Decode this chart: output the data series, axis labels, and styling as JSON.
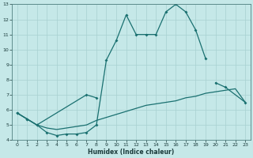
{
  "xlabel": "Humidex (Indice chaleur)",
  "background_color": "#c5e8e8",
  "grid_color": "#a8d0d0",
  "line_color": "#1a7070",
  "xlim": [
    -0.5,
    23.5
  ],
  "ylim": [
    4,
    13
  ],
  "x_ticks": [
    0,
    1,
    2,
    3,
    4,
    5,
    6,
    7,
    8,
    9,
    10,
    11,
    12,
    13,
    14,
    15,
    16,
    17,
    18,
    19,
    20,
    21,
    22,
    23
  ],
  "y_ticks": [
    4,
    5,
    6,
    7,
    8,
    9,
    10,
    11,
    12,
    13
  ],
  "curve_upper_x": [
    0,
    1,
    2,
    3,
    4,
    5,
    6,
    7,
    8,
    9,
    10,
    11,
    12,
    13,
    14,
    15,
    16,
    17,
    18,
    19
  ],
  "curve_upper_y": [
    5.8,
    5.4,
    5.0,
    4.5,
    4.3,
    4.4,
    4.4,
    4.5,
    5.0,
    9.3,
    10.6,
    12.3,
    11.0,
    11.0,
    11.0,
    12.5,
    13.0,
    12.5,
    11.3,
    9.4
  ],
  "curve_mid_segs": [
    {
      "x": [
        0,
        1,
        2,
        7,
        8
      ],
      "y": [
        5.8,
        5.4,
        5.0,
        7.0,
        6.8
      ]
    },
    {
      "x": [
        20,
        21,
        23
      ],
      "y": [
        7.8,
        7.5,
        6.5
      ]
    }
  ],
  "curve_lower_x": [
    0,
    1,
    2,
    3,
    4,
    5,
    6,
    7,
    8,
    9,
    10,
    11,
    12,
    13,
    14,
    15,
    16,
    17,
    18,
    19,
    20,
    21,
    22,
    23
  ],
  "curve_lower_y": [
    5.8,
    5.4,
    5.0,
    4.8,
    4.7,
    4.8,
    4.9,
    5.0,
    5.3,
    5.5,
    5.7,
    5.9,
    6.1,
    6.3,
    6.4,
    6.5,
    6.6,
    6.8,
    6.9,
    7.1,
    7.2,
    7.3,
    7.4,
    6.5
  ]
}
